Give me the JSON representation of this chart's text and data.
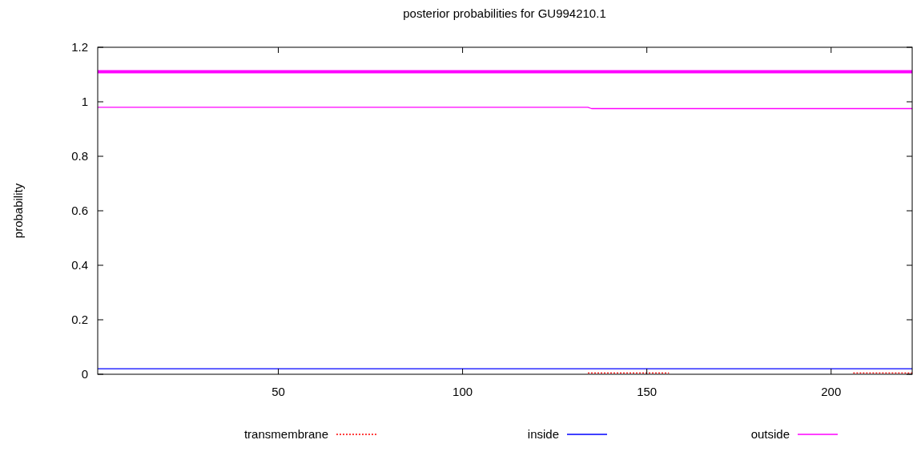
{
  "chart_data": {
    "type": "line",
    "title": "posterior probabilities for GU994210.1",
    "ylabel": "probability",
    "xlim": [
      1,
      222
    ],
    "xticks": [
      50,
      100,
      150,
      200
    ],
    "ylim": [
      0,
      1.2
    ],
    "yticks": [
      0,
      0.2,
      0.4,
      0.6,
      0.8,
      1,
      1.2
    ],
    "grid": false,
    "legend": "bottom",
    "series": [
      {
        "name": "transmembrane",
        "color": "#ff0000",
        "line_style": "dotted",
        "x": [
          134,
          156,
          157,
          206,
          222
        ],
        "values": [
          0.005,
          0.005,
          null,
          0.005,
          0.005
        ]
      },
      {
        "name": "inside",
        "color": "#0000ff",
        "line_style": "solid",
        "x": [
          1,
          222
        ],
        "values": [
          0.02,
          0.02
        ]
      },
      {
        "name": "outside",
        "color": "#ff00ff",
        "line_style": "solid",
        "x": [
          1,
          134,
          135,
          222
        ],
        "values": [
          0.98,
          0.98,
          0.975,
          0.975
        ]
      },
      {
        "color": "#ff00ff",
        "line_style": "solid",
        "x": [
          1,
          222
        ],
        "values": [
          1.11,
          1.11
        ]
      }
    ]
  }
}
